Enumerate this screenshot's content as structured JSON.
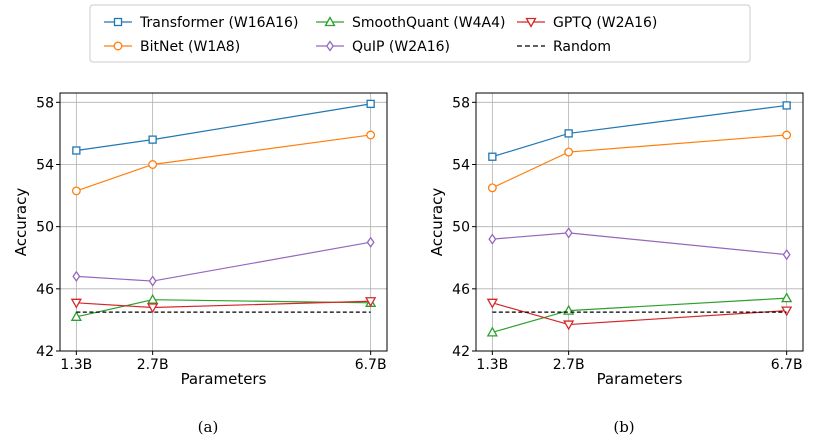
{
  "legend": {
    "entries": [
      {
        "label": "Transformer (W16A16)",
        "color": "#1f77b4",
        "marker": "square",
        "dash": false
      },
      {
        "label": "SmoothQuant (W4A4)",
        "color": "#2ca02c",
        "marker": "triangle-up",
        "dash": false
      },
      {
        "label": "GPTQ (W2A16)",
        "color": "#d62728",
        "marker": "triangle-down",
        "dash": false
      },
      {
        "label": "BitNet (W1A8)",
        "color": "#ff7f0e",
        "marker": "circle",
        "dash": false
      },
      {
        "label": "QuIP (W2A16)",
        "color": "#9467bd",
        "marker": "diamond",
        "dash": false
      },
      {
        "label": "Random",
        "color": "#000000",
        "marker": "none",
        "dash": true
      }
    ]
  },
  "chart_data": [
    {
      "type": "line",
      "caption": "(a)",
      "xlabel": "Parameters",
      "ylabel": "Accuracy",
      "categories": [
        "1.3B",
        "2.7B",
        "6.7B"
      ],
      "x": [
        1.3,
        2.7,
        6.7
      ],
      "xlim": [
        1.0,
        7.0
      ],
      "ylim": [
        42,
        58.6
      ],
      "yticks": [
        42,
        46,
        50,
        54,
        58
      ],
      "grid": true,
      "series": [
        {
          "name": "Transformer (W16A16)",
          "values": [
            54.9,
            55.6,
            57.9
          ]
        },
        {
          "name": "BitNet (W1A8)",
          "values": [
            52.3,
            54.0,
            55.9
          ]
        },
        {
          "name": "QuIP (W2A16)",
          "values": [
            46.8,
            46.5,
            49.0
          ]
        },
        {
          "name": "SmoothQuant (W4A4)",
          "values": [
            44.2,
            45.3,
            45.1
          ]
        },
        {
          "name": "GPTQ (W2A16)",
          "values": [
            45.1,
            44.8,
            45.2
          ]
        },
        {
          "name": "Random",
          "values": [
            44.5,
            44.5,
            44.5
          ]
        }
      ]
    },
    {
      "type": "line",
      "caption": "(b)",
      "xlabel": "Parameters",
      "ylabel": "Accuracy",
      "categories": [
        "1.3B",
        "2.7B",
        "6.7B"
      ],
      "x": [
        1.3,
        2.7,
        6.7
      ],
      "xlim": [
        1.0,
        7.0
      ],
      "ylim": [
        42,
        58.6
      ],
      "yticks": [
        42,
        46,
        50,
        54,
        58
      ],
      "grid": true,
      "series": [
        {
          "name": "Transformer (W16A16)",
          "values": [
            54.5,
            56.0,
            57.8
          ]
        },
        {
          "name": "BitNet (W1A8)",
          "values": [
            52.5,
            54.8,
            55.9
          ]
        },
        {
          "name": "QuIP (W2A16)",
          "values": [
            49.2,
            49.6,
            48.2
          ]
        },
        {
          "name": "SmoothQuant (W4A4)",
          "values": [
            43.2,
            44.6,
            45.4
          ]
        },
        {
          "name": "GPTQ (W2A16)",
          "values": [
            45.1,
            43.7,
            44.6
          ]
        },
        {
          "name": "Random",
          "values": [
            44.5,
            44.5,
            44.5
          ]
        }
      ]
    }
  ]
}
